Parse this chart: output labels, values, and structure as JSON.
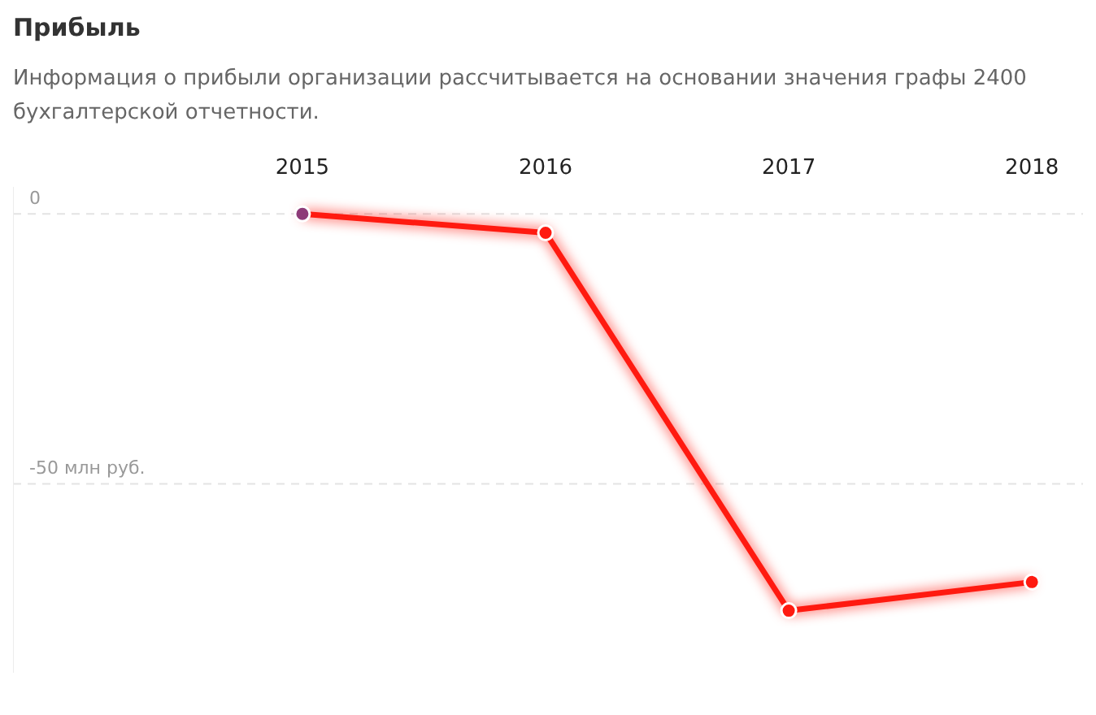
{
  "chart_data": {
    "type": "line",
    "title": "Прибыль",
    "subtitle": "Информация о прибыли организации рассчитывается на основании значения графы 2400 бухгалтерской отчетности.",
    "categories": [
      "2015",
      "2016",
      "2017",
      "2018"
    ],
    "series": [
      {
        "color": "#ff1a10",
        "colors": [
          "#8e3b78",
          "#ff1a10",
          "#ff1a10",
          "#ff1a10"
        ],
        "values": [
          0,
          -3.5,
          -73.5,
          -68.2
        ]
      }
    ],
    "ylim": [
      -85,
      5
    ],
    "yticks": [
      0,
      {
        "value": -50,
        "label": "-50 млн руб."
      }
    ],
    "grid": "y",
    "marker": "circle",
    "line_style": "solid",
    "legend": false
  }
}
